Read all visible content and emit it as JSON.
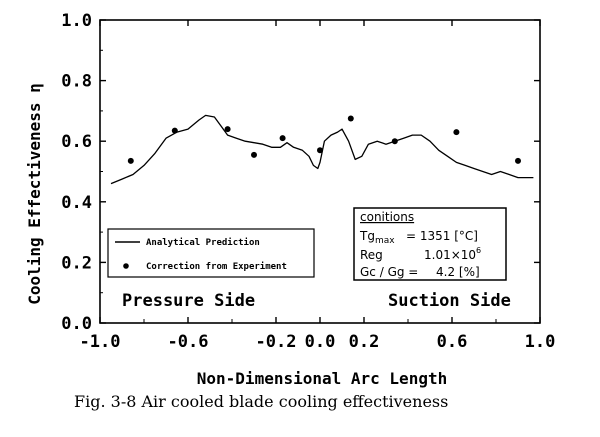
{
  "chart_data": {
    "type": "line",
    "xlabel": "Non-Dimensional Arc Length",
    "ylabel": "Cooling Effectiveness η",
    "xlim": [
      -1.0,
      1.0
    ],
    "ylim": [
      0.0,
      1.0
    ],
    "xticks": [
      -1.0,
      -0.6,
      -0.2,
      0.0,
      0.2,
      0.6,
      1.0
    ],
    "xtick_labels": [
      "-1.0",
      "-0.6",
      "-0.2",
      "0.0",
      "0.2",
      "0.6",
      "1.0"
    ],
    "yticks": [
      0.0,
      0.2,
      0.4,
      0.6,
      0.8,
      1.0
    ],
    "ytick_labels": [
      "0.0",
      "0.2",
      "0.4",
      "0.6",
      "0.8",
      "1.0"
    ],
    "grid": false,
    "legend_position": "bottom-left",
    "series": [
      {
        "name": "Analytical Prediction",
        "style": "line",
        "x": [
          -0.95,
          -0.9,
          -0.85,
          -0.8,
          -0.75,
          -0.7,
          -0.65,
          -0.6,
          -0.55,
          -0.52,
          -0.48,
          -0.45,
          -0.42,
          -0.38,
          -0.34,
          -0.3,
          -0.26,
          -0.22,
          -0.18,
          -0.15,
          -0.12,
          -0.08,
          -0.05,
          -0.03,
          -0.01,
          0.0,
          0.02,
          0.05,
          0.08,
          0.1,
          0.13,
          0.16,
          0.19,
          0.22,
          0.26,
          0.3,
          0.34,
          0.38,
          0.42,
          0.46,
          0.5,
          0.54,
          0.58,
          0.62,
          0.66,
          0.7,
          0.74,
          0.78,
          0.82,
          0.86,
          0.9,
          0.94,
          0.97
        ],
        "y": [
          0.46,
          0.475,
          0.49,
          0.52,
          0.56,
          0.61,
          0.63,
          0.64,
          0.67,
          0.685,
          0.68,
          0.65,
          0.62,
          0.61,
          0.6,
          0.595,
          0.59,
          0.58,
          0.58,
          0.595,
          0.58,
          0.57,
          0.55,
          0.52,
          0.51,
          0.53,
          0.6,
          0.62,
          0.63,
          0.64,
          0.6,
          0.54,
          0.55,
          0.59,
          0.6,
          0.59,
          0.6,
          0.61,
          0.62,
          0.62,
          0.6,
          0.57,
          0.55,
          0.53,
          0.52,
          0.51,
          0.5,
          0.49,
          0.5,
          0.49,
          0.48,
          0.48,
          0.48
        ]
      },
      {
        "name": "Correction from Experiment",
        "style": "points",
        "x": [
          -0.86,
          -0.66,
          -0.42,
          -0.3,
          -0.17,
          0.0,
          0.14,
          0.34,
          0.62,
          0.9
        ],
        "y": [
          0.535,
          0.635,
          0.64,
          0.555,
          0.61,
          0.57,
          0.675,
          0.6,
          0.63,
          0.535
        ]
      }
    ],
    "annotations": {
      "pressure_side": "Pressure Side",
      "suction_side": "Suction Side"
    },
    "conditions": {
      "heading": "conitions",
      "tg_label": "Tg",
      "tg_sub": "max",
      "tg_value": "= 1351 [°C]",
      "reg_label": "Reg",
      "reg_value": "1.01×10",
      "reg_exp": "6",
      "gc_label": "Gc / Gg =",
      "gc_value": "4.2 [%]"
    }
  },
  "caption": "Fig. 3-8 Air cooled blade cooling effectiveness"
}
